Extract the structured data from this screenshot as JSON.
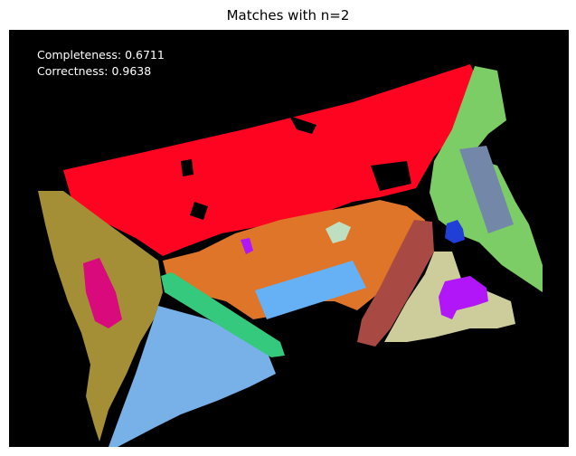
{
  "figure": {
    "title": "Matches with n=2"
  },
  "metrics": {
    "completeness": "Completeness: 0.6711",
    "correctness": "Correctness: 0.9638"
  },
  "segment_colors": {
    "red": "#ff0420",
    "olive": "#a58f36",
    "orange": "#df7528",
    "light_green": "#7ccd66",
    "slate": "#7388a9",
    "sky_blue": "#66b0f6",
    "light_blue": "#78b1e8",
    "teal_green": "#34c97c",
    "magenta_pink": "#d80a7c",
    "brown_red": "#a84a43",
    "beige": "#cdcd9b",
    "violet": "#b016f8",
    "blue": "#1f3fd7",
    "pale_mint": "#bfe0c0",
    "background": "#000000"
  }
}
